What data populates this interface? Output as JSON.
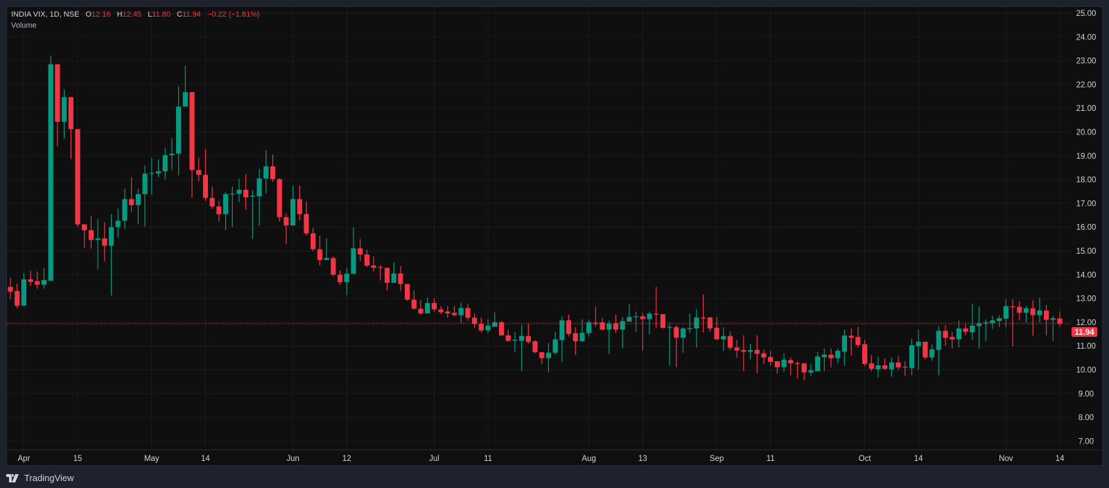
{
  "header": {
    "symbol": "INDIA VIX, 1D, NSE",
    "open_label": "O",
    "open": "12.16",
    "high_label": "H",
    "high": "12.45",
    "low_label": "L",
    "low": "11.80",
    "close_label": "C",
    "close": "11.94",
    "change": "−0.22 (−1.81%)",
    "indicator": "Volume"
  },
  "branding": {
    "logo_icon": "tradingview-logo-icon",
    "name": "TradingView"
  },
  "colors": {
    "up": "#089981",
    "down": "#f23645",
    "background": "#0f0f0f",
    "grid": "#1c1c1c",
    "frame": "#1e222d",
    "axis_text": "#d1d4dc"
  },
  "chart_data": {
    "type": "candlestick",
    "title": "INDIA VIX, 1D, NSE",
    "ylim": [
      7,
      25
    ],
    "grid": true,
    "y_ticks": [
      "25.00",
      "24.00",
      "23.00",
      "22.00",
      "21.00",
      "20.00",
      "19.00",
      "18.00",
      "17.00",
      "16.00",
      "15.00",
      "14.00",
      "13.00",
      "12.00",
      "11.00",
      "10.00",
      "9.00",
      "8.00",
      "7.00"
    ],
    "x_ticks": [
      {
        "label": "Apr",
        "index": 2
      },
      {
        "label": "15",
        "index": 10
      },
      {
        "label": "May",
        "index": 21
      },
      {
        "label": "14",
        "index": 29
      },
      {
        "label": "Jun",
        "index": 42
      },
      {
        "label": "12",
        "index": 50
      },
      {
        "label": "Jul",
        "index": 63
      },
      {
        "label": "11",
        "index": 71
      },
      {
        "label": "Aug",
        "index": 86
      },
      {
        "label": "13",
        "index": 94
      },
      {
        "label": "Sep",
        "index": 105
      },
      {
        "label": "11",
        "index": 113
      },
      {
        "label": "Oct",
        "index": 127
      },
      {
        "label": "14",
        "index": 135
      },
      {
        "label": "Nov",
        "index": 148
      },
      {
        "label": "14",
        "index": 156
      }
    ],
    "last_price": {
      "value": 11.94,
      "label": "11.94"
    },
    "ohlc_columns": [
      "open",
      "high",
      "low",
      "close"
    ],
    "candles": [
      [
        13.49,
        13.87,
        12.97,
        13.29
      ],
      [
        13.31,
        13.63,
        12.59,
        12.7
      ],
      [
        12.7,
        14.07,
        12.7,
        13.81
      ],
      [
        13.81,
        14.17,
        13.54,
        13.7
      ],
      [
        13.73,
        14.14,
        13.41,
        13.58
      ],
      [
        13.58,
        14.28,
        13.41,
        13.78
      ],
      [
        13.75,
        23.22,
        13.75,
        22.85
      ],
      [
        22.85,
        22.85,
        19.4,
        20.43
      ],
      [
        20.43,
        21.8,
        19.72,
        21.47
      ],
      [
        21.47,
        21.47,
        18.88,
        20.12
      ],
      [
        20.12,
        20.12,
        16.0,
        16.12
      ],
      [
        16.12,
        16.12,
        15.13,
        15.87
      ],
      [
        15.87,
        16.48,
        15.09,
        15.46
      ],
      [
        15.46,
        16.34,
        14.22,
        15.53
      ],
      [
        15.53,
        16.21,
        14.56,
        15.22
      ],
      [
        15.22,
        16.55,
        13.12,
        16.0
      ],
      [
        16.0,
        16.78,
        15.57,
        16.27
      ],
      [
        16.27,
        17.62,
        15.92,
        17.18
      ],
      [
        17.18,
        18.1,
        16.65,
        16.93
      ],
      [
        16.93,
        17.62,
        16.12,
        17.39
      ],
      [
        17.39,
        18.59,
        16.02,
        18.25
      ],
      [
        18.25,
        18.9,
        17.37,
        18.28
      ],
      [
        18.26,
        18.85,
        18.1,
        18.35
      ],
      [
        18.35,
        19.33,
        18.0,
        19.03
      ],
      [
        19.03,
        19.75,
        18.4,
        19.09
      ],
      [
        19.09,
        21.93,
        18.18,
        21.07
      ],
      [
        21.07,
        22.79,
        21.07,
        21.68
      ],
      [
        21.68,
        21.68,
        17.23,
        18.4
      ],
      [
        18.4,
        18.93,
        17.92,
        18.2
      ],
      [
        18.2,
        19.29,
        17.11,
        17.23
      ],
      [
        17.23,
        17.7,
        16.77,
        16.87
      ],
      [
        16.87,
        17.1,
        16.23,
        16.55
      ],
      [
        16.55,
        17.47,
        15.87,
        17.39
      ],
      [
        17.38,
        17.71,
        15.99,
        17.42
      ],
      [
        17.4,
        18.03,
        17.06,
        17.57
      ],
      [
        17.57,
        18.23,
        16.73,
        17.26
      ],
      [
        17.28,
        17.54,
        15.5,
        17.32
      ],
      [
        17.3,
        18.45,
        16.06,
        18.05
      ],
      [
        18.05,
        19.24,
        17.42,
        18.56
      ],
      [
        18.56,
        19.06,
        17.9,
        18.02
      ],
      [
        18.02,
        18.05,
        16.23,
        16.42
      ],
      [
        16.42,
        16.57,
        15.3,
        16.07
      ],
      [
        16.07,
        17.74,
        16.07,
        17.18
      ],
      [
        17.18,
        17.74,
        16.29,
        16.55
      ],
      [
        16.55,
        17.08,
        15.65,
        15.74
      ],
      [
        15.74,
        15.97,
        14.99,
        15.07
      ],
      [
        15.07,
        15.64,
        14.39,
        14.62
      ],
      [
        14.62,
        15.52,
        14.62,
        14.7
      ],
      [
        14.7,
        14.77,
        13.94,
        14.0
      ],
      [
        14.0,
        14.19,
        13.57,
        13.69
      ],
      [
        13.69,
        14.29,
        13.13,
        14.04
      ],
      [
        14.04,
        16.0,
        14.04,
        15.11
      ],
      [
        15.11,
        15.5,
        14.57,
        14.85
      ],
      [
        14.85,
        15.06,
        14.32,
        14.39
      ],
      [
        14.39,
        14.77,
        14.14,
        14.29
      ],
      [
        14.32,
        14.4,
        13.76,
        14.29
      ],
      [
        14.29,
        14.29,
        13.34,
        13.66
      ],
      [
        13.66,
        14.52,
        13.66,
        14.05
      ],
      [
        14.05,
        14.37,
        13.32,
        13.61
      ],
      [
        13.61,
        13.61,
        12.9,
        12.95
      ],
      [
        12.95,
        13.34,
        12.54,
        12.57
      ],
      [
        12.57,
        12.93,
        12.32,
        12.37
      ],
      [
        12.37,
        13.05,
        12.37,
        12.81
      ],
      [
        12.81,
        13.01,
        12.45,
        12.54
      ],
      [
        12.54,
        12.68,
        12.35,
        12.42
      ],
      [
        12.45,
        12.68,
        12.19,
        12.37
      ],
      [
        12.4,
        12.69,
        12.24,
        12.3
      ],
      [
        12.3,
        12.81,
        11.95,
        12.6
      ],
      [
        12.6,
        12.76,
        12.07,
        12.19
      ],
      [
        12.19,
        12.37,
        11.77,
        11.93
      ],
      [
        11.93,
        12.19,
        11.59,
        11.66
      ],
      [
        11.66,
        12.13,
        11.54,
        11.86
      ],
      [
        11.81,
        12.44,
        11.81,
        12.0
      ],
      [
        12.0,
        12.05,
        11.42,
        11.45
      ],
      [
        11.45,
        11.69,
        11.18,
        11.22
      ],
      [
        11.22,
        11.59,
        10.74,
        11.26
      ],
      [
        11.22,
        11.89,
        9.95,
        11.42
      ],
      [
        11.42,
        11.95,
        11.1,
        11.17
      ],
      [
        11.2,
        11.25,
        10.69,
        10.74
      ],
      [
        10.74,
        10.74,
        10.23,
        10.49
      ],
      [
        10.49,
        11.13,
        9.89,
        10.72
      ],
      [
        10.72,
        11.59,
        10.63,
        11.28
      ],
      [
        11.25,
        12.25,
        10.33,
        12.08
      ],
      [
        12.08,
        12.32,
        11.4,
        11.51
      ],
      [
        11.54,
        11.79,
        10.62,
        11.2
      ],
      [
        11.2,
        12.13,
        11.2,
        11.56
      ],
      [
        11.54,
        12.12,
        11.4,
        12.0
      ],
      [
        11.98,
        12.66,
        11.81,
        11.93
      ],
      [
        12.0,
        12.18,
        11.66,
        11.69
      ],
      [
        11.69,
        12.07,
        10.67,
        11.95
      ],
      [
        11.96,
        12.32,
        11.56,
        11.69
      ],
      [
        11.69,
        12.22,
        10.91,
        12.05
      ],
      [
        12.03,
        12.76,
        12.03,
        12.22
      ],
      [
        12.22,
        12.44,
        11.6,
        12.25
      ],
      [
        12.25,
        12.39,
        10.8,
        12.13
      ],
      [
        12.13,
        12.45,
        11.49,
        12.36
      ],
      [
        12.36,
        13.49,
        11.76,
        12.34
      ],
      [
        12.34,
        12.34,
        11.76,
        11.76
      ],
      [
        11.79,
        11.98,
        10.18,
        11.81
      ],
      [
        11.79,
        11.88,
        10.11,
        11.35
      ],
      [
        11.35,
        11.79,
        10.72,
        11.74
      ],
      [
        11.72,
        12.37,
        11.56,
        11.76
      ],
      [
        11.74,
        12.56,
        10.94,
        12.2
      ],
      [
        12.2,
        13.17,
        11.57,
        12.16
      ],
      [
        12.2,
        12.23,
        11.61,
        11.74
      ],
      [
        11.77,
        12.23,
        11.25,
        11.28
      ],
      [
        11.28,
        11.79,
        10.8,
        11.42
      ],
      [
        11.42,
        11.61,
        10.83,
        10.93
      ],
      [
        10.94,
        11.26,
        10.5,
        10.81
      ],
      [
        10.83,
        11.45,
        9.94,
        10.76
      ],
      [
        10.76,
        11.09,
        10.44,
        10.83
      ],
      [
        10.84,
        11.45,
        9.86,
        10.67
      ],
      [
        10.69,
        10.84,
        10.25,
        10.52
      ],
      [
        10.54,
        10.8,
        10.18,
        10.33
      ],
      [
        10.36,
        10.36,
        9.84,
        10.11
      ],
      [
        10.11,
        10.69,
        9.92,
        10.43
      ],
      [
        10.41,
        10.52,
        9.76,
        10.27
      ],
      [
        10.28,
        10.36,
        9.63,
        10.27
      ],
      [
        10.27,
        10.27,
        9.55,
        9.89
      ],
      [
        9.89,
        10.25,
        9.75,
        9.98
      ],
      [
        9.94,
        10.75,
        9.94,
        10.56
      ],
      [
        10.53,
        10.89,
        9.94,
        10.64
      ],
      [
        10.64,
        10.89,
        10.1,
        10.49
      ],
      [
        10.49,
        10.89,
        10.28,
        10.8
      ],
      [
        10.76,
        11.69,
        10.17,
        11.44
      ],
      [
        11.43,
        11.74,
        10.6,
        11.35
      ],
      [
        11.38,
        11.81,
        10.94,
        11.04
      ],
      [
        11.08,
        11.27,
        10.15,
        10.25
      ],
      [
        10.27,
        10.62,
        9.94,
        10.04
      ],
      [
        10.02,
        10.55,
        9.67,
        10.19
      ],
      [
        10.19,
        10.48,
        9.99,
        10.04
      ],
      [
        10.02,
        10.51,
        9.72,
        10.31
      ],
      [
        10.31,
        10.58,
        10.0,
        10.1
      ],
      [
        10.13,
        10.36,
        9.73,
        10.11
      ],
      [
        10.08,
        11.29,
        9.78,
        11.03
      ],
      [
        10.99,
        11.69,
        10.0,
        11.18
      ],
      [
        11.18,
        11.18,
        10.44,
        10.52
      ],
      [
        10.52,
        11.07,
        10.38,
        10.86
      ],
      [
        10.84,
        11.84,
        9.77,
        11.64
      ],
      [
        11.64,
        11.88,
        11.0,
        11.35
      ],
      [
        11.38,
        11.6,
        10.9,
        11.28
      ],
      [
        11.28,
        12.08,
        10.95,
        11.74
      ],
      [
        11.74,
        11.95,
        11.45,
        11.6
      ],
      [
        11.58,
        12.76,
        11.27,
        11.86
      ],
      [
        11.84,
        12.66,
        10.9,
        11.96
      ],
      [
        11.96,
        12.12,
        11.22,
        12.0
      ],
      [
        11.96,
        12.27,
        11.72,
        12.08
      ],
      [
        12.06,
        12.29,
        11.79,
        12.17
      ],
      [
        12.15,
        12.97,
        11.79,
        12.68
      ],
      [
        12.67,
        12.97,
        10.98,
        12.64
      ],
      [
        12.65,
        12.88,
        12.08,
        12.4
      ],
      [
        12.4,
        12.69,
        11.98,
        12.59
      ],
      [
        12.59,
        12.93,
        11.43,
        12.3
      ],
      [
        12.3,
        13.04,
        11.98,
        12.5
      ],
      [
        12.49,
        12.73,
        11.45,
        12.1
      ],
      [
        12.11,
        12.27,
        11.22,
        12.17
      ],
      [
        12.16,
        12.45,
        11.8,
        11.94
      ]
    ]
  }
}
